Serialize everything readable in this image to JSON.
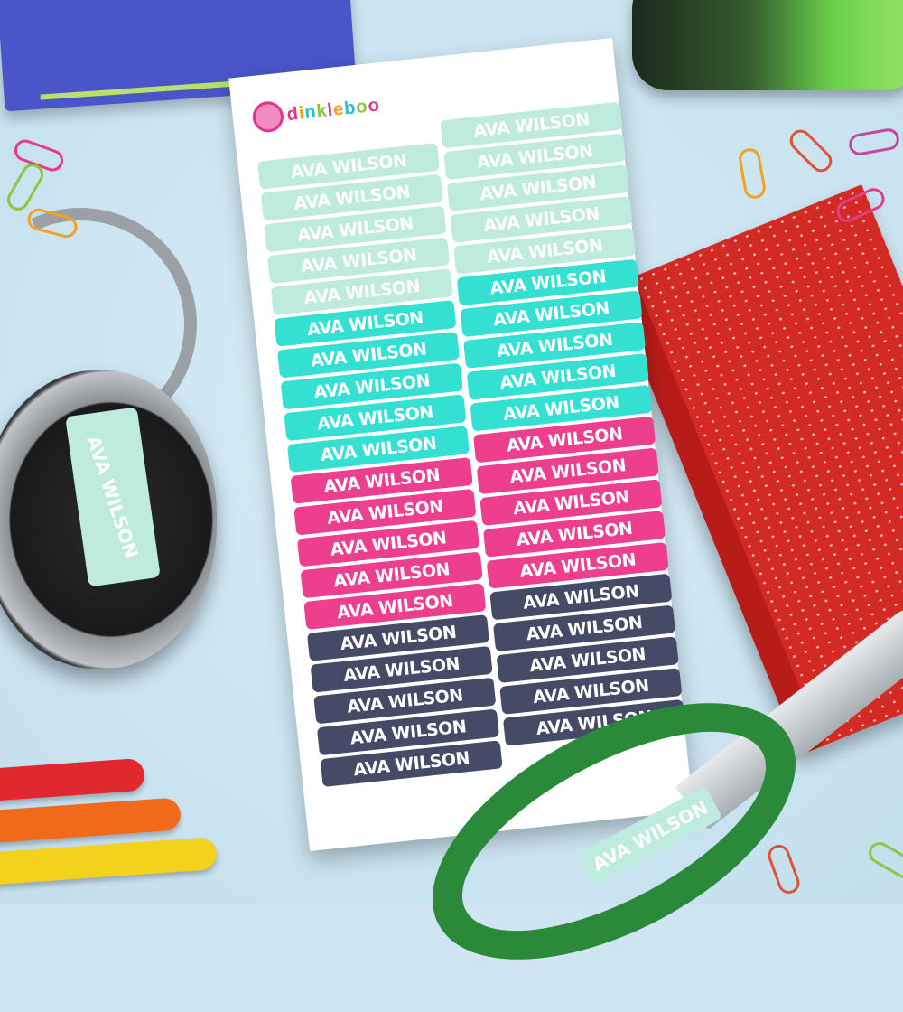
{
  "brand": {
    "name": "dinkleboo",
    "letter_colors": [
      "#e2338f",
      "#f7a11a",
      "#2fb7e6",
      "#8cc63f",
      "#e2338f",
      "#f7a11a",
      "#2fb7e6",
      "#8cc63f",
      "#e2338f"
    ]
  },
  "label_text": "AVA WILSON",
  "sheet": {
    "color_groups": [
      {
        "name": "mint",
        "color": "#bfeade",
        "count": 5
      },
      {
        "name": "turquoise",
        "color": "#33e0d2",
        "count": 5
      },
      {
        "name": "pink",
        "color": "#ee3f8e",
        "count": 5
      },
      {
        "name": "navy",
        "color": "#454a66",
        "count": 5
      }
    ],
    "columns": 2
  },
  "headphone_label": "AVA WILSON",
  "scissors_label": "AVA WILSON",
  "crayons": [
    "#e0282e",
    "#f06a1c",
    "#f2d21c"
  ],
  "paperclips": [
    "#e23c8a",
    "#f2a21c",
    "#8cc63f",
    "#e0523a",
    "#c04a9a"
  ]
}
